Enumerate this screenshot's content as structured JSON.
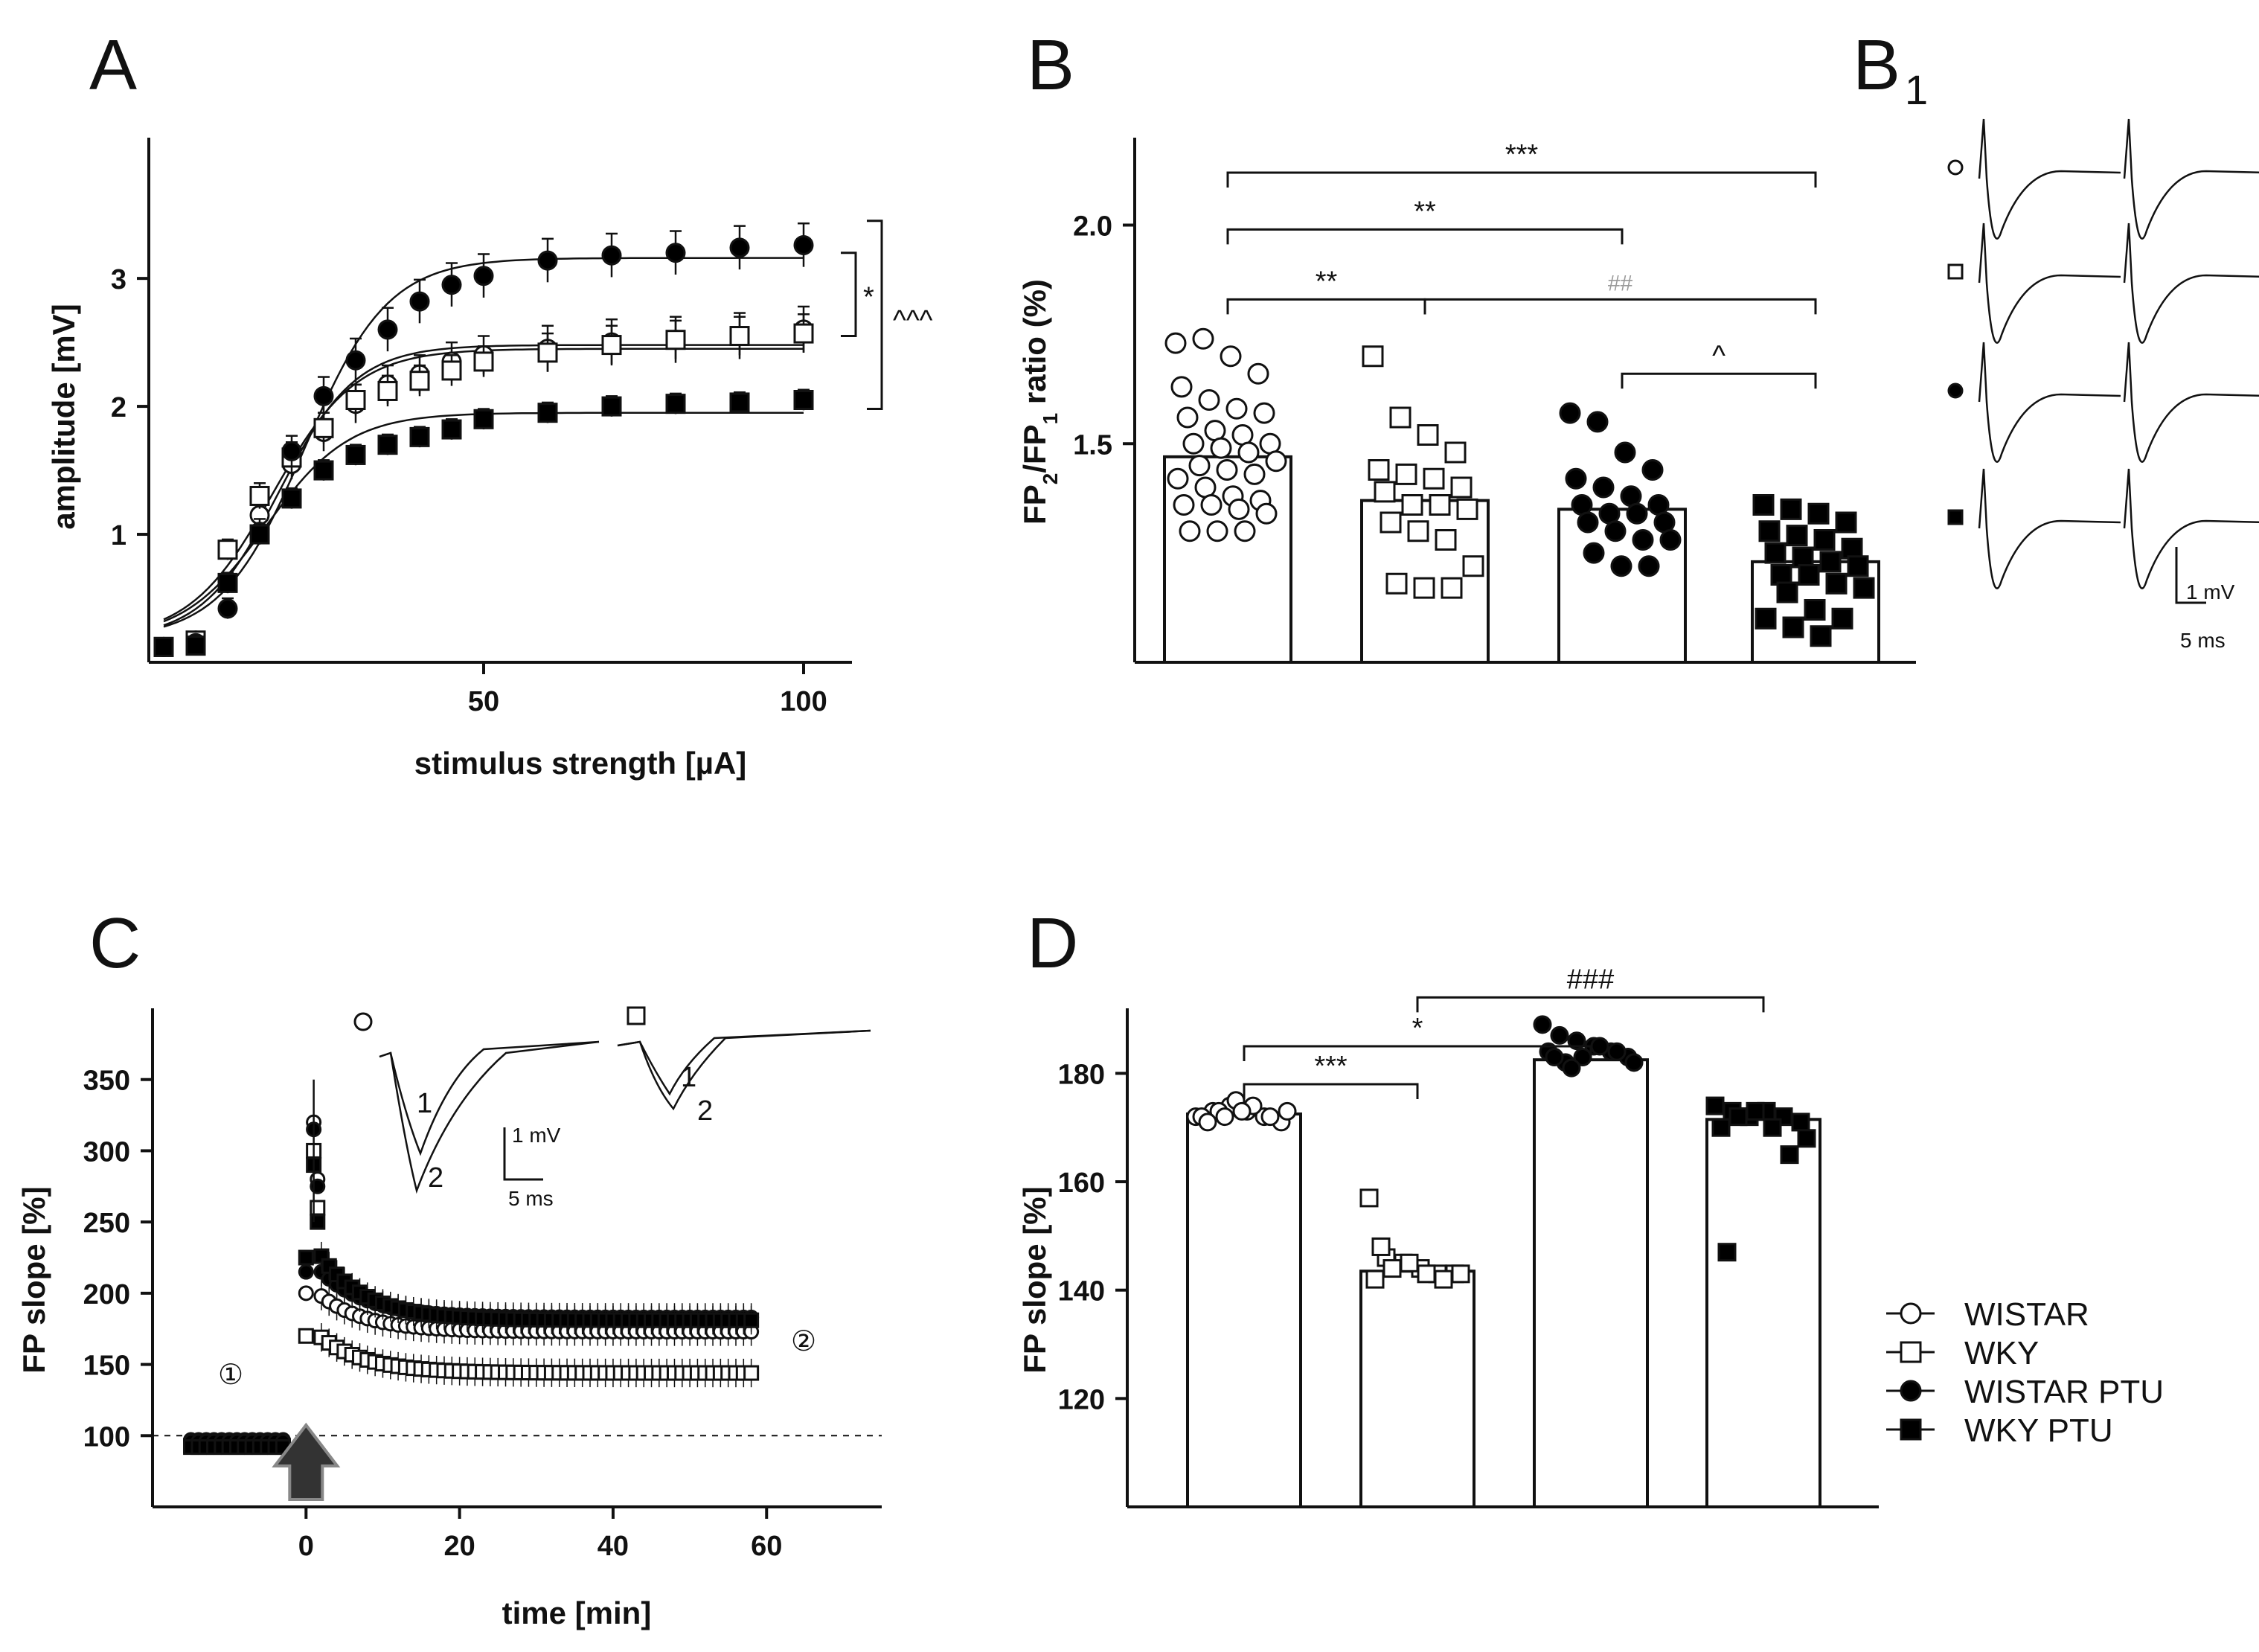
{
  "panel_labels": {
    "A": "A",
    "B": "B",
    "B1": "B",
    "B1_sub": "1",
    "C": "C",
    "D": "D"
  },
  "legend": [
    {
      "label": "WISTAR",
      "marker": "circle",
      "fill": "#ffffff"
    },
    {
      "label": "WKY",
      "marker": "square",
      "fill": "#ffffff"
    },
    {
      "label": "WISTAR PTU",
      "marker": "circle",
      "fill": "#000000"
    },
    {
      "label": "WKY PTU",
      "marker": "square",
      "fill": "#000000"
    }
  ],
  "chart_data": [
    {
      "id": "A",
      "type": "line",
      "title": "",
      "xlabel": "stimulus strength [µA]",
      "ylabel": "amplitude [mV]",
      "xlim": [
        0,
        110
      ],
      "ylim": [
        0,
        4.1
      ],
      "x_ticks": [
        50,
        100
      ],
      "y_ticks": [
        1,
        2,
        3
      ],
      "x": [
        0,
        5,
        10,
        15,
        20,
        25,
        30,
        35,
        40,
        45,
        50,
        60,
        70,
        80,
        90,
        100
      ],
      "series": [
        {
          "name": "WISTAR",
          "marker": "circle",
          "fill": "#ffffff",
          "values": [
            0.12,
            0.17,
            0.62,
            1.15,
            1.55,
            1.8,
            2.02,
            2.17,
            2.25,
            2.35,
            2.4,
            2.45,
            2.5,
            2.52,
            2.55,
            2.6
          ],
          "err": [
            0.05,
            0.05,
            0.08,
            0.1,
            0.12,
            0.15,
            0.15,
            0.15,
            0.15,
            0.15,
            0.15,
            0.18,
            0.18,
            0.18,
            0.18,
            0.18
          ]
        },
        {
          "name": "WKY",
          "marker": "square",
          "fill": "#ffffff",
          "values": [
            0.12,
            0.17,
            0.88,
            1.3,
            1.6,
            1.83,
            2.05,
            2.12,
            2.2,
            2.28,
            2.35,
            2.42,
            2.48,
            2.52,
            2.55,
            2.57
          ],
          "err": [
            0.05,
            0.05,
            0.08,
            0.1,
            0.12,
            0.12,
            0.12,
            0.12,
            0.12,
            0.12,
            0.12,
            0.15,
            0.15,
            0.15,
            0.15,
            0.15
          ]
        },
        {
          "name": "WISTAR PTU",
          "marker": "circle",
          "fill": "#000000",
          "values": [
            0.12,
            0.15,
            0.42,
            1.02,
            1.65,
            2.08,
            2.36,
            2.6,
            2.82,
            2.95,
            3.02,
            3.14,
            3.18,
            3.2,
            3.24,
            3.26
          ],
          "err": [
            0.05,
            0.05,
            0.08,
            0.1,
            0.12,
            0.15,
            0.17,
            0.17,
            0.17,
            0.17,
            0.17,
            0.17,
            0.17,
            0.17,
            0.17,
            0.17
          ]
        },
        {
          "name": "WKY PTU",
          "marker": "square",
          "fill": "#000000",
          "values": [
            0.12,
            0.13,
            0.62,
            1.0,
            1.28,
            1.5,
            1.62,
            1.7,
            1.76,
            1.82,
            1.9,
            1.95,
            2.0,
            2.02,
            2.03,
            2.05
          ],
          "err": [
            0.05,
            0.05,
            0.06,
            0.07,
            0.08,
            0.08,
            0.08,
            0.08,
            0.08,
            0.08,
            0.08,
            0.08,
            0.08,
            0.08,
            0.08,
            0.08
          ]
        }
      ],
      "fits": [
        {
          "name": "WISTAR",
          "max": 2.48,
          "x50": 18,
          "slope": 6
        },
        {
          "name": "WKY",
          "max": 2.45,
          "x50": 17,
          "slope": 6.5
        },
        {
          "name": "WISTAR PTU",
          "max": 3.16,
          "x50": 22,
          "slope": 6.5
        },
        {
          "name": "WKY PTU",
          "max": 1.95,
          "x50": 16,
          "slope": 6.5
        }
      ],
      "annotations": [
        {
          "text": "*"
        },
        {
          "text": "^^^"
        }
      ]
    },
    {
      "id": "B",
      "type": "bar",
      "xlabel": "",
      "ylabel": "FP₂/FP₁ ratio (%)",
      "ylabel_parts": {
        "a": "FP",
        "a_sub": "2",
        "b": "/FP",
        "b_sub": "1",
        "c": " ratio (%)"
      },
      "ylim": [
        1.0,
        2.2
      ],
      "y_ticks": [
        1.5,
        2.0
      ],
      "categories": [
        "WISTAR",
        "WKY",
        "WISTAR PTU",
        "WKY PTU"
      ],
      "values": [
        1.47,
        1.37,
        1.35,
        1.23
      ],
      "points": [
        [
          1.73,
          1.74,
          1.7,
          1.66,
          1.63,
          1.6,
          1.58,
          1.57,
          1.56,
          1.53,
          1.52,
          1.5,
          1.5,
          1.49,
          1.48,
          1.46,
          1.45,
          1.44,
          1.43,
          1.42,
          1.4,
          1.38,
          1.37,
          1.36,
          1.36,
          1.35,
          1.34,
          1.3,
          1.3,
          1.3
        ],
        [
          1.7,
          1.56,
          1.52,
          1.48,
          1.44,
          1.43,
          1.42,
          1.4,
          1.39,
          1.36,
          1.36,
          1.35,
          1.32,
          1.3,
          1.28,
          1.22,
          1.18,
          1.17,
          1.17
        ],
        [
          1.57,
          1.55,
          1.48,
          1.44,
          1.42,
          1.4,
          1.38,
          1.36,
          1.36,
          1.34,
          1.34,
          1.32,
          1.32,
          1.3,
          1.28,
          1.28,
          1.25,
          1.22,
          1.22
        ],
        [
          1.36,
          1.35,
          1.34,
          1.32,
          1.3,
          1.29,
          1.28,
          1.26,
          1.25,
          1.24,
          1.23,
          1.22,
          1.2,
          1.2,
          1.18,
          1.17,
          1.16,
          1.12,
          1.1,
          1.1,
          1.08,
          1.06
        ]
      ],
      "brackets": [
        {
          "from": 0,
          "to": 3,
          "y": 2.12,
          "text": "***",
          "color": "#111"
        },
        {
          "from": 0,
          "to": 2,
          "y": 1.99,
          "text": "**",
          "color": "#111"
        },
        {
          "from": 0,
          "to": 1,
          "y": 1.83,
          "text": "**",
          "color": "#111"
        },
        {
          "from": 1,
          "to": 3,
          "y": 1.83,
          "text": "##",
          "color": "#999"
        },
        {
          "from": 2,
          "to": 3,
          "y": 1.66,
          "text": "^",
          "color": "#111"
        }
      ]
    },
    {
      "id": "B1",
      "type": "traces",
      "scale_bar": {
        "v": "1 mV",
        "t": "5 ms"
      }
    },
    {
      "id": "C",
      "type": "scatter",
      "xlabel": "time [min]",
      "ylabel": "FP slope [%]",
      "xlim": [
        -20,
        75
      ],
      "ylim": [
        50,
        400
      ],
      "x_ticks": [
        0,
        20,
        40,
        60
      ],
      "y_ticks": [
        100,
        150,
        200,
        250,
        300,
        350
      ],
      "baseline": 100,
      "baseline_marker": "①",
      "late_marker": "②",
      "series": [
        {
          "name": "WISTAR",
          "final": 175,
          "peak": 320,
          "post": 200
        },
        {
          "name": "WKY",
          "final": 145,
          "peak": 300,
          "post": 170
        },
        {
          "name": "WISTAR PTU",
          "final": 183,
          "peak": 315,
          "post": 215
        },
        {
          "name": "WKY PTU",
          "final": 180,
          "peak": 290,
          "post": 225
        }
      ],
      "inset": {
        "label1": "1",
        "label2": "2",
        "scale_v": "1 mV",
        "scale_t": "5 ms"
      }
    },
    {
      "id": "D",
      "type": "bar",
      "xlabel": "",
      "ylabel": "FP slope [%]",
      "ylim": [
        100,
        192
      ],
      "y_ticks": [
        120,
        140,
        160,
        180
      ],
      "categories": [
        "WISTAR",
        "WKY",
        "WISTAR PTU",
        "WKY PTU"
      ],
      "values": [
        172.5,
        143.5,
        182.5,
        171.5
      ],
      "points": [
        [
          172,
          173,
          174,
          173,
          172,
          171,
          172,
          173,
          175,
          174,
          172,
          173,
          171,
          172,
          173
        ],
        [
          157,
          146,
          145,
          144,
          143,
          143,
          142,
          144,
          145,
          143,
          142,
          143,
          148
        ],
        [
          189,
          187,
          186,
          185,
          184,
          183,
          184,
          182,
          183,
          185,
          184,
          182,
          183,
          181
        ],
        [
          174,
          173,
          172,
          173,
          172,
          171,
          170,
          172,
          173,
          170,
          165,
          168,
          147
        ]
      ],
      "brackets": [
        {
          "from": 0,
          "to": 1,
          "y": 178,
          "text": "***",
          "color": "#111"
        },
        {
          "from": 0,
          "to": 2,
          "y": 185,
          "text": "*",
          "color": "#111"
        },
        {
          "from": 1,
          "to": 3,
          "y": 194,
          "text": "###",
          "color": "#111"
        }
      ]
    }
  ]
}
